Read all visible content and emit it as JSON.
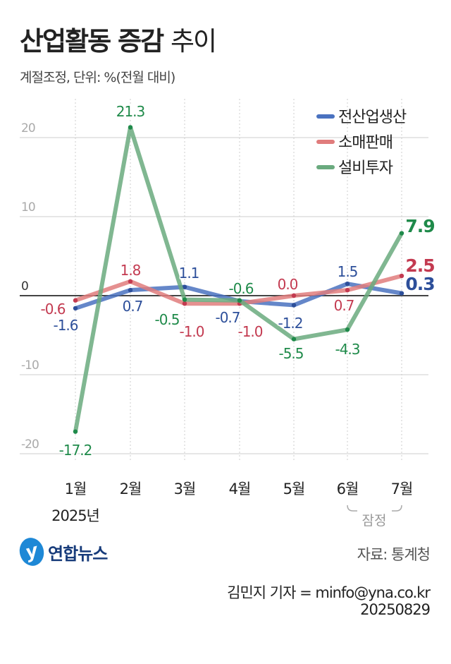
{
  "header": {
    "title_bold": "산업활동 증감",
    "title_light": "추이",
    "subtitle": "계절조정, 단위: %(전월 대비)"
  },
  "chart_data": {
    "type": "line",
    "title": "산업활동 증감 추이",
    "subtitle": "계절조정, 단위: %(전월 대비)",
    "categories": [
      "1월",
      "2월",
      "3월",
      "4월",
      "5월",
      "6월",
      "7월"
    ],
    "year_label": "2025년",
    "annotation": "잠정",
    "ylim": [
      -22,
      24
    ],
    "yticks": [
      20,
      10,
      0,
      -10,
      -20
    ],
    "ytick_labels": [
      "20",
      "10",
      "0",
      "-10",
      "-20"
    ],
    "grid": true,
    "legend_position": "top-right",
    "series": [
      {
        "name": "전산업생산",
        "color": "#4a72c0",
        "label_color": "#2d4f9a",
        "values": [
          -1.6,
          0.7,
          1.1,
          -0.7,
          -1.2,
          1.5,
          0.3
        ]
      },
      {
        "name": "소매판매",
        "color": "#e07c7c",
        "label_color": "#c33a50",
        "values": [
          -0.6,
          1.8,
          -1.0,
          -1.0,
          0.0,
          0.7,
          2.5
        ]
      },
      {
        "name": "설비투자",
        "color": "#6aaa7e",
        "label_color": "#1f8a4a",
        "values": [
          -17.2,
          21.3,
          -0.5,
          -0.6,
          -5.5,
          -4.3,
          7.9
        ]
      }
    ]
  },
  "footer": {
    "logo": "연합뉴스",
    "source": "자료: 통계청",
    "credit": "김민지 기자 = minfo@yna.co.kr",
    "date": "20250829"
  }
}
